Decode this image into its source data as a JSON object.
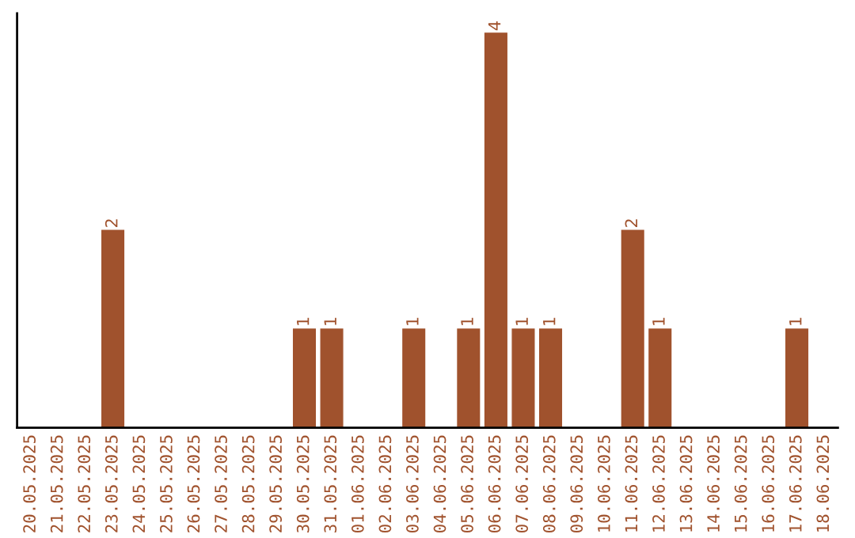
{
  "chart_data": {
    "type": "bar",
    "categories": [
      "20.05.2025",
      "21.05.2025",
      "22.05.2025",
      "23.05.2025",
      "24.05.2025",
      "25.05.2025",
      "26.05.2025",
      "27.05.2025",
      "28.05.2025",
      "29.05.2025",
      "30.05.2025",
      "31.05.2025",
      "01.06.2025",
      "02.06.2025",
      "03.06.2025",
      "04.06.2025",
      "05.06.2025",
      "06.06.2025",
      "07.06.2025",
      "08.06.2025",
      "09.06.2025",
      "10.06.2025",
      "11.06.2025",
      "12.06.2025",
      "13.06.2025",
      "14.06.2025",
      "15.06.2025",
      "16.06.2025",
      "17.06.2025",
      "18.06.2025"
    ],
    "values": [
      0,
      0,
      0,
      2,
      0,
      0,
      0,
      0,
      0,
      0,
      1,
      1,
      0,
      0,
      1,
      0,
      1,
      4,
      1,
      1,
      0,
      0,
      2,
      1,
      0,
      0,
      0,
      0,
      1,
      0
    ],
    "value_labels": [
      null,
      null,
      null,
      "2",
      null,
      null,
      null,
      null,
      null,
      null,
      "1",
      "1",
      null,
      null,
      "1",
      null,
      "1",
      "4",
      "1",
      "1",
      null,
      null,
      "2",
      "1",
      null,
      null,
      null,
      null,
      "1",
      null
    ],
    "color": "#a0522d",
    "tick_labels": "x",
    "grid": false,
    "legend": false
  }
}
